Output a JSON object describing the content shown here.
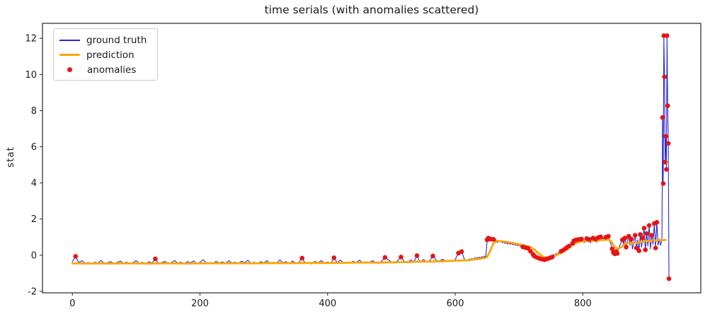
{
  "figure": {
    "title": "time serials (with anomalies scattered)",
    "background": "#ffffff"
  },
  "axes": {
    "ylabel": "stat",
    "xlabel": "",
    "xlim": [
      -46.9,
      984.9
    ],
    "ylim": [
      -2.08,
      12.83
    ],
    "xticks": [
      0,
      200,
      400,
      600,
      800
    ],
    "yticks": [
      -2,
      0,
      2,
      4,
      6,
      8,
      10,
      12
    ],
    "grid": false,
    "spine_color": "#262626",
    "tick_color": "#1a1a1a"
  },
  "legend": {
    "position": "upper-left",
    "items": [
      {
        "label": "ground truth",
        "type": "line",
        "color": "#2a2ad6"
      },
      {
        "label": "prediction",
        "type": "line-thick",
        "color": "#ffa500"
      },
      {
        "label": "anomalies",
        "type": "dot",
        "color": "#e61414"
      }
    ]
  },
  "chart_data": {
    "type": "line",
    "title": "time serials (with anomalies scattered)",
    "xlabel": "",
    "ylabel": "stat",
    "legend_position": "upper-left",
    "series": [
      {
        "name": "ground truth",
        "color": "#2a2ad6",
        "width": 1.1,
        "segments": [
          {
            "x0": 0,
            "dx": 5,
            "y": [
              -0.35,
              -0.06,
              -0.42,
              -0.3,
              -0.45,
              -0.4,
              -0.5,
              -0.38,
              -0.44,
              -0.28,
              -0.46,
              -0.42,
              -0.35,
              -0.47,
              -0.4,
              -0.32,
              -0.44,
              -0.38,
              -0.48,
              -0.41,
              -0.3,
              -0.45,
              -0.39,
              -0.5,
              -0.36,
              -0.43,
              -0.2,
              -0.46,
              -0.4,
              -0.34,
              -0.47,
              -0.41,
              -0.29,
              -0.44,
              -0.38,
              -0.49,
              -0.35,
              -0.42,
              -0.31,
              -0.46,
              -0.39,
              -0.25,
              -0.44,
              -0.4,
              -0.48,
              -0.34,
              -0.42,
              -0.37,
              -0.45,
              -0.3,
              -0.43,
              -0.38,
              -0.47,
              -0.33,
              -0.41,
              -0.28,
              -0.45,
              -0.39,
              -0.48,
              -0.35,
              -0.42,
              -0.3,
              -0.46,
              -0.38,
              -0.44,
              -0.26,
              -0.41,
              -0.36,
              -0.47,
              -0.32,
              -0.43,
              -0.39,
              -0.16,
              -0.45,
              -0.4,
              -0.48,
              -0.34,
              -0.42,
              -0.29,
              -0.44,
              -0.37,
              -0.46,
              -0.14,
              -0.41,
              -0.26,
              -0.45,
              -0.38,
              -0.43,
              -0.33,
              -0.4,
              -0.27,
              -0.44,
              -0.36,
              -0.42,
              -0.3,
              -0.39,
              -0.45,
              -0.32,
              -0.12,
              -0.25,
              -0.38,
              -0.43,
              -0.29,
              -0.1,
              -0.34,
              -0.42,
              -0.26,
              -0.37,
              -0.02,
              -0.4,
              -0.24,
              -0.36,
              -0.3,
              -0.04,
              -0.27,
              -0.34,
              -0.22,
              -0.32,
              -0.28,
              -0.35,
              -0.24,
              0.12,
              0.2,
              -0.28
            ]
          },
          {
            "x0": 620,
            "dx": 2,
            "y": [
              -0.26,
              -0.2,
              -0.24,
              -0.18,
              -0.22,
              -0.15,
              -0.2,
              -0.12,
              -0.18,
              -0.1,
              -0.15,
              -0.08,
              -0.12,
              -0.05,
              -0.1
            ]
          },
          {
            "x0": 650,
            "dx": 2,
            "y": [
              0.85,
              0.95,
              0.78,
              0.9,
              0.82,
              0.88,
              0.75,
              0.85,
              0.7,
              0.8,
              0.73,
              0.78,
              0.68,
              0.75,
              0.65,
              0.72,
              0.62,
              0.7,
              0.6,
              0.66,
              0.58,
              0.64,
              0.55,
              0.62,
              0.52,
              0.58,
              0.5,
              0.55,
              0.46,
              0.52,
              0.42,
              0.48,
              0.38,
              0.3,
              0.22,
              0.15,
              0.05,
              -0.05,
              0.02,
              -0.12,
              -0.05,
              -0.18,
              -0.1,
              -0.22,
              -0.15,
              -0.25,
              -0.12,
              -0.2,
              -0.08,
              -0.15,
              -0.02,
              -0.1,
              0.05,
              -0.04,
              0.1,
              0.02,
              0.15,
              0.08,
              0.22,
              0.15,
              0.3,
              0.22,
              0.4,
              0.32,
              0.5,
              0.6,
              0.72,
              0.65,
              0.8,
              0.7,
              0.85,
              0.75,
              0.88,
              0.78,
              0.9,
              0.8,
              0.7,
              0.82,
              0.92,
              0.75,
              0.88,
              0.68,
              0.85,
              0.95,
              0.78,
              0.9,
              0.72,
              0.98,
              0.85,
              1.02,
              0.88,
              0.95,
              0.8,
              1.0,
              0.9,
              1.05,
              0.85,
              0.6,
              0.35,
              0.15,
              0.08,
              0.2,
              0.1,
              0.35,
              0.55,
              0.7,
              0.85,
              0.6,
              0.95,
              0.45,
              0.8,
              1.05,
              0.55,
              0.9,
              0.35,
              0.75,
              1.1,
              0.4,
              0.85,
              0.25,
              1.15,
              0.45,
              0.95,
              1.5,
              0.3,
              1.2,
              0.5,
              1.65,
              0.35,
              1.1,
              0.6,
              1.75,
              0.4,
              1.82,
              0.55,
              0.9,
              0.55,
              0.9
            ]
          },
          {
            "x0": 925,
            "dx": 1,
            "y": [
              7.62,
              3.97,
              12.15,
              9.87,
              5.15,
              6.58,
              4.75,
              12.15,
              8.27,
              6.19,
              -1.3
            ]
          }
        ]
      },
      {
        "name": "prediction",
        "color": "#ffa500",
        "width": 2.8,
        "segments": [
          {
            "x0": 0,
            "dx": 20,
            "y": [
              -0.45,
              -0.46,
              -0.45,
              -0.46,
              -0.45,
              -0.45,
              -0.46,
              -0.45,
              -0.45,
              -0.46,
              -0.45,
              -0.44,
              -0.45,
              -0.44,
              -0.45,
              -0.44,
              -0.43,
              -0.44,
              -0.43,
              -0.42,
              -0.43,
              -0.42,
              -0.41,
              -0.4,
              -0.41,
              -0.39,
              -0.38,
              -0.36,
              -0.35,
              -0.33,
              -0.3,
              -0.28
            ]
          },
          {
            "x0": 625,
            "dx": 5,
            "y": [
              -0.25,
              -0.23,
              -0.21,
              -0.19,
              -0.16,
              -0.1,
              0.25,
              0.68,
              0.78,
              0.78,
              0.76,
              0.74,
              0.71,
              0.68,
              0.64,
              0.6,
              0.56,
              0.52,
              0.48,
              0.42,
              0.3,
              0.12,
              -0.02,
              -0.1,
              -0.14,
              -0.1,
              -0.05,
              0.02,
              0.1,
              0.2,
              0.32,
              0.45,
              0.58,
              0.68,
              0.74,
              0.78,
              0.76,
              0.79,
              0.8,
              0.78,
              0.82,
              0.85,
              0.84,
              0.88,
              0.75,
              0.45,
              0.35,
              0.45,
              0.6,
              0.7,
              0.65,
              0.72,
              0.68,
              0.75,
              0.72,
              0.8,
              0.75,
              0.85,
              0.8,
              0.85,
              0.83,
              0.85
            ]
          }
        ]
      }
    ],
    "anomalies": {
      "name": "anomalies",
      "color": "#e61414",
      "radius": 3.3,
      "points": [
        [
          5,
          -0.06
        ],
        [
          130,
          -0.2
        ],
        [
          360,
          -0.16
        ],
        [
          410,
          -0.14
        ],
        [
          490,
          -0.12
        ],
        [
          515,
          -0.1
        ],
        [
          540,
          -0.02
        ],
        [
          565,
          -0.04
        ],
        [
          605,
          0.12
        ],
        [
          610,
          0.2
        ],
        [
          650,
          0.85
        ],
        [
          652,
          0.95
        ],
        [
          656,
          0.9
        ],
        [
          660,
          0.88
        ],
        [
          706,
          0.46
        ],
        [
          710,
          0.42
        ],
        [
          714,
          0.38
        ],
        [
          718,
          0.22
        ],
        [
          722,
          0.05
        ],
        [
          724,
          -0.05
        ],
        [
          728,
          -0.12
        ],
        [
          732,
          -0.18
        ],
        [
          736,
          -0.22
        ],
        [
          740,
          -0.25
        ],
        [
          744,
          -0.2
        ],
        [
          748,
          -0.15
        ],
        [
          752,
          -0.1
        ],
        [
          766,
          0.22
        ],
        [
          770,
          0.3
        ],
        [
          774,
          0.4
        ],
        [
          778,
          0.5
        ],
        [
          784,
          0.65
        ],
        [
          786,
          0.8
        ],
        [
          790,
          0.85
        ],
        [
          794,
          0.88
        ],
        [
          798,
          0.9
        ],
        [
          806,
          0.92
        ],
        [
          810,
          0.88
        ],
        [
          816,
          0.95
        ],
        [
          820,
          0.9
        ],
        [
          824,
          0.98
        ],
        [
          828,
          1.02
        ],
        [
          836,
          1.0
        ],
        [
          840,
          1.05
        ],
        [
          846,
          0.35
        ],
        [
          848,
          0.15
        ],
        [
          850,
          0.08
        ],
        [
          852,
          0.2
        ],
        [
          854,
          0.1
        ],
        [
          862,
          0.85
        ],
        [
          866,
          0.95
        ],
        [
          868,
          0.45
        ],
        [
          872,
          1.05
        ],
        [
          876,
          0.9
        ],
        [
          882,
          1.1
        ],
        [
          884,
          0.4
        ],
        [
          888,
          0.25
        ],
        [
          890,
          1.15
        ],
        [
          894,
          0.95
        ],
        [
          896,
          1.5
        ],
        [
          898,
          0.3
        ],
        [
          900,
          1.2
        ],
        [
          904,
          1.65
        ],
        [
          908,
          1.1
        ],
        [
          912,
          1.75
        ],
        [
          914,
          0.4
        ],
        [
          916,
          1.82
        ],
        [
          925,
          7.62
        ],
        [
          926,
          3.97
        ],
        [
          927,
          12.15
        ],
        [
          928,
          9.87
        ],
        [
          929,
          5.15
        ],
        [
          930,
          6.58
        ],
        [
          931,
          4.75
        ],
        [
          932,
          12.15
        ],
        [
          933,
          8.27
        ],
        [
          934,
          6.19
        ],
        [
          935,
          -1.3
        ]
      ]
    }
  }
}
